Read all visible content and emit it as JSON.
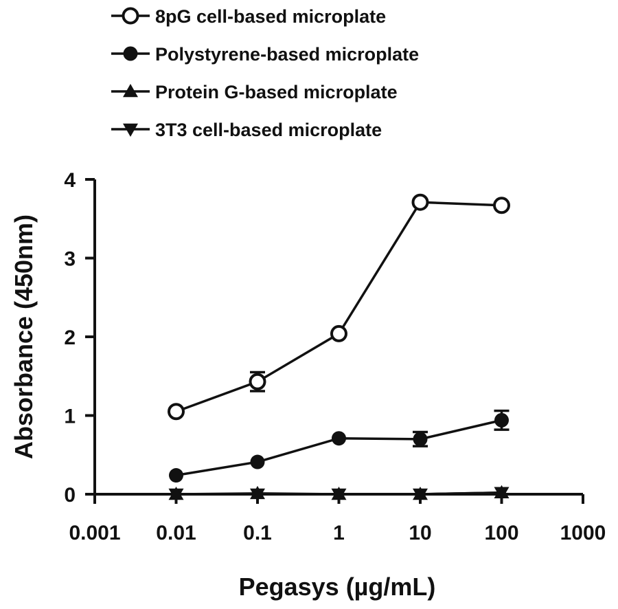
{
  "chart_data": {
    "type": "line",
    "xlabel": "Pegasys (µg/mL)",
    "ylabel": "Absorbance (450nm)",
    "xscale": "log",
    "xlim": [
      0.001,
      1000
    ],
    "ylim": [
      0,
      4
    ],
    "x_ticks": [
      "0.001",
      "0.01",
      "0.1",
      "1",
      "10",
      "100",
      "1000"
    ],
    "y_ticks": [
      "0",
      "1",
      "2",
      "3",
      "4"
    ],
    "legend_position": "top-left",
    "grid": false,
    "x": [
      0.01,
      0.1,
      1,
      10,
      100
    ],
    "series": [
      {
        "name": "8pG cell-based microplate",
        "marker": "open-circle",
        "values": [
          1.05,
          1.43,
          2.04,
          3.71,
          3.67
        ],
        "errors": [
          0.03,
          0.12,
          0.03,
          0.03,
          0.03
        ]
      },
      {
        "name": "Polystyrene-based microplate",
        "marker": "filled-circle",
        "values": [
          0.24,
          0.41,
          0.71,
          0.7,
          0.94
        ],
        "errors": [
          0.02,
          0.03,
          0.03,
          0.09,
          0.12
        ]
      },
      {
        "name": "Protein G-based microplate",
        "marker": "triangle-up",
        "values": [
          0.0,
          0.01,
          0.0,
          0.0,
          0.02
        ],
        "errors": [
          0,
          0,
          0,
          0,
          0
        ]
      },
      {
        "name": "3T3 cell-based microplate",
        "marker": "triangle-down",
        "values": [
          0.0,
          0.0,
          0.0,
          0.0,
          0.02
        ],
        "errors": [
          0,
          0,
          0,
          0,
          0
        ]
      }
    ]
  }
}
